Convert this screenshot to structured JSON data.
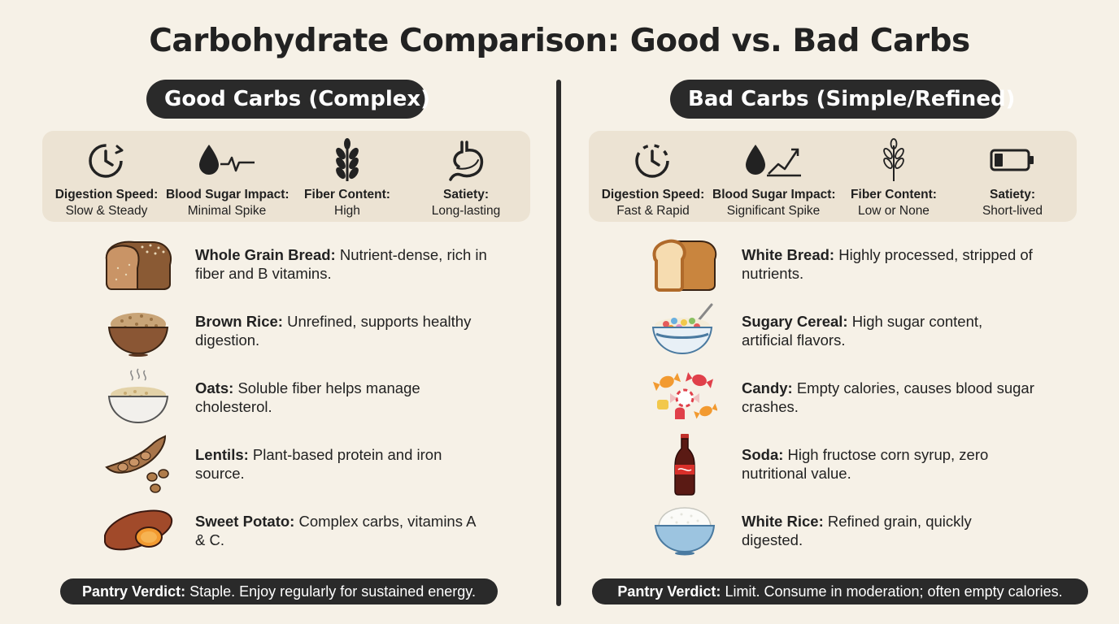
{
  "title": "Carbohydrate Comparison: Good vs. Bad Carbs",
  "good": {
    "heading": "Good Carbs (Complex)",
    "metrics": [
      {
        "icon": "clock-icon",
        "label": "Digestion Speed:",
        "value": "Slow & Steady"
      },
      {
        "icon": "blood-drop-flat-pulse-icon",
        "label": "Blood Sugar Impact:",
        "value": "Minimal Spike"
      },
      {
        "icon": "wheat-icon",
        "label": "Fiber Content:",
        "value": "High"
      },
      {
        "icon": "stomach-icon",
        "label": "Satiety:",
        "value": "Long-lasting"
      }
    ],
    "items": [
      {
        "icon": "whole-grain-bread-icon",
        "name": "Whole Grain Bread:",
        "desc": "Nutrient-dense, rich in fiber and B vitamins."
      },
      {
        "icon": "brown-rice-bowl-icon",
        "name": "Brown Rice:",
        "desc": "Unrefined, supports healthy digestion."
      },
      {
        "icon": "oats-bowl-icon",
        "name": "Oats:",
        "desc": "Soluble fiber helps manage cholesterol."
      },
      {
        "icon": "lentils-icon",
        "name": "Lentils:",
        "desc": "Plant-based protein and iron source."
      },
      {
        "icon": "sweet-potato-icon",
        "name": "Sweet Potato:",
        "desc": "Complex carbs, vitamins A & C."
      }
    ],
    "verdict_label": "Pantry Verdict:",
    "verdict_text": "Staple. Enjoy regularly for sustained energy."
  },
  "bad": {
    "heading": "Bad Carbs (Simple/Refined)",
    "metrics": [
      {
        "icon": "clock-icon",
        "label": "Digestion Speed:",
        "value": "Fast & Rapid"
      },
      {
        "icon": "blood-drop-rising-trend-icon",
        "label": "Blood Sugar Impact:",
        "value": "Significant Spike"
      },
      {
        "icon": "thin-wheat-icon",
        "label": "Fiber Content:",
        "value": "Low or None"
      },
      {
        "icon": "low-battery-icon",
        "label": "Satiety:",
        "value": "Short-lived"
      }
    ],
    "items": [
      {
        "icon": "white-bread-icon",
        "name": "White Bread:",
        "desc": "Highly processed, stripped of nutrients."
      },
      {
        "icon": "sugary-cereal-icon",
        "name": "Sugary Cereal:",
        "desc": "High sugar content, artificial flavors."
      },
      {
        "icon": "candy-icon",
        "name": "Candy:",
        "desc": "Empty calories, causes blood sugar crashes."
      },
      {
        "icon": "soda-bottle-icon",
        "name": "Soda:",
        "desc": "High fructose corn syrup, zero nutritional value."
      },
      {
        "icon": "white-rice-bowl-icon",
        "name": "White Rice:",
        "desc": "Refined grain, quickly digested."
      }
    ],
    "verdict_label": "Pantry Verdict:",
    "verdict_text": "Limit. Consume in moderation; often empty calories."
  }
}
